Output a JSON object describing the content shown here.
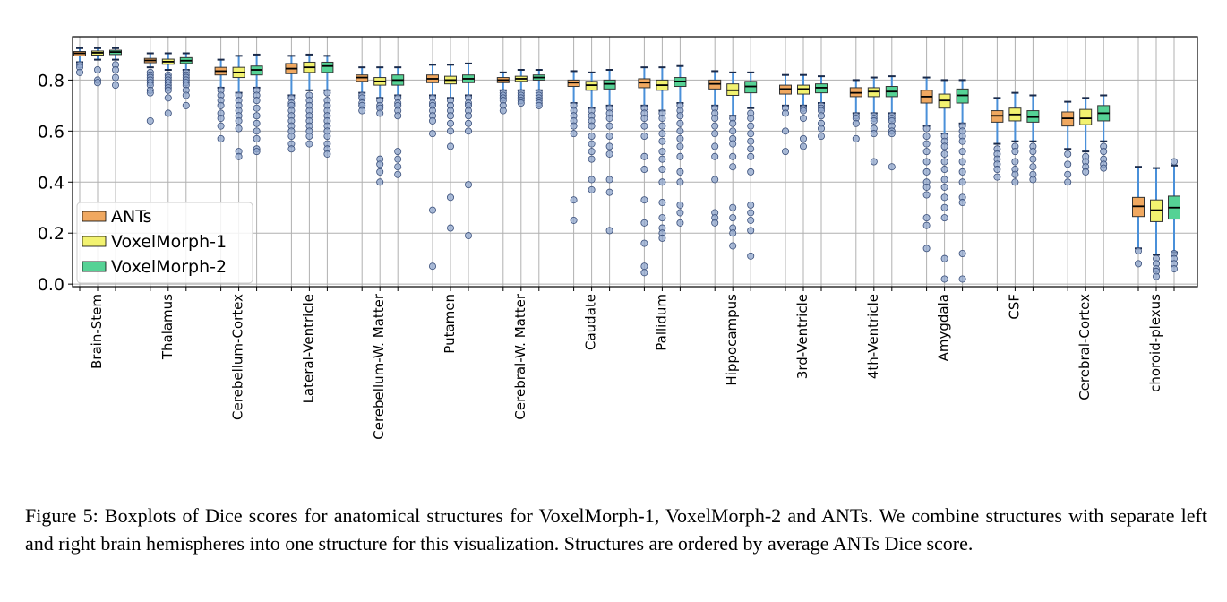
{
  "chart_data": {
    "type": "boxplot",
    "categories": [
      "Brain-Stem",
      "Thalamus",
      "Cerebellum-Cortex",
      "Lateral-Ventricle",
      "Cerebellum-W. Matter",
      "Putamen",
      "Cerebral-W. Matter",
      "Caudate",
      "Pallidum",
      "Hippocampus",
      "3rd-Ventricle",
      "4th-Ventricle",
      "Amygdala",
      "CSF",
      "Cerebral-Cortex",
      "choroid-plexus"
    ],
    "ylim": [
      -0.01,
      0.97
    ],
    "yticks": [
      "0.0",
      "0.2",
      "0.4",
      "0.6",
      "0.8"
    ],
    "grid": true,
    "legend_position": "lower-left",
    "series": [
      {
        "name": "ANTs",
        "color": "#f0a860",
        "boxes": [
          {
            "whislo": 0.87,
            "q1": 0.895,
            "med": 0.905,
            "q3": 0.912,
            "whishi": 0.925,
            "fliers": [
              0.86,
              0.85,
              0.83
            ]
          },
          {
            "whislo": 0.85,
            "q1": 0.868,
            "med": 0.877,
            "q3": 0.885,
            "whishi": 0.905,
            "fliers": [
              0.83,
              0.82,
              0.81,
              0.8,
              0.79,
              0.78,
              0.76,
              0.75,
              0.64
            ]
          },
          {
            "whislo": 0.77,
            "q1": 0.82,
            "med": 0.835,
            "q3": 0.85,
            "whishi": 0.88,
            "fliers": [
              0.76,
              0.74,
              0.72,
              0.7,
              0.67,
              0.65,
              0.62,
              0.57
            ]
          },
          {
            "whislo": 0.74,
            "q1": 0.825,
            "med": 0.845,
            "q3": 0.865,
            "whishi": 0.895,
            "fliers": [
              0.73,
              0.71,
              0.7,
              0.68,
              0.66,
              0.64,
              0.62,
              0.6,
              0.58,
              0.55,
              0.53
            ]
          },
          {
            "whislo": 0.75,
            "q1": 0.795,
            "med": 0.81,
            "q3": 0.82,
            "whishi": 0.85,
            "fliers": [
              0.74,
              0.73,
              0.71,
              0.7,
              0.68
            ]
          },
          {
            "whislo": 0.74,
            "q1": 0.79,
            "med": 0.805,
            "q3": 0.82,
            "whishi": 0.86,
            "fliers": [
              0.73,
              0.71,
              0.7,
              0.68,
              0.66,
              0.64,
              0.59,
              0.29,
              0.07
            ]
          },
          {
            "whislo": 0.76,
            "q1": 0.79,
            "med": 0.8,
            "q3": 0.81,
            "whishi": 0.83,
            "fliers": [
              0.75,
              0.74,
              0.73,
              0.72,
              0.7,
              0.68
            ]
          },
          {
            "whislo": 0.71,
            "q1": 0.775,
            "med": 0.79,
            "q3": 0.8,
            "whishi": 0.835,
            "fliers": [
              0.7,
              0.68,
              0.66,
              0.64,
              0.62,
              0.59,
              0.33,
              0.25
            ]
          },
          {
            "whislo": 0.7,
            "q1": 0.77,
            "med": 0.79,
            "q3": 0.805,
            "whishi": 0.85,
            "fliers": [
              0.69,
              0.67,
              0.65,
              0.62,
              0.58,
              0.5,
              0.45,
              0.33,
              0.24,
              0.16,
              0.07,
              0.045
            ]
          },
          {
            "whislo": 0.7,
            "q1": 0.765,
            "med": 0.785,
            "q3": 0.8,
            "whishi": 0.835,
            "fliers": [
              0.69,
              0.67,
              0.65,
              0.62,
              0.59,
              0.54,
              0.5,
              0.41,
              0.28,
              0.26,
              0.24
            ]
          },
          {
            "whislo": 0.7,
            "q1": 0.745,
            "med": 0.765,
            "q3": 0.78,
            "whishi": 0.82,
            "fliers": [
              0.69,
              0.67,
              0.6,
              0.52
            ]
          },
          {
            "whislo": 0.67,
            "q1": 0.735,
            "med": 0.75,
            "q3": 0.77,
            "whishi": 0.8,
            "fliers": [
              0.66,
              0.65,
              0.63,
              0.57
            ]
          },
          {
            "whislo": 0.62,
            "q1": 0.71,
            "med": 0.735,
            "q3": 0.76,
            "whishi": 0.81,
            "fliers": [
              0.61,
              0.58,
              0.55,
              0.52,
              0.48,
              0.44,
              0.4,
              0.38,
              0.35,
              0.26,
              0.23,
              0.14
            ]
          },
          {
            "whislo": 0.55,
            "q1": 0.635,
            "med": 0.66,
            "q3": 0.68,
            "whishi": 0.73,
            "fliers": [
              0.53,
              0.51,
              0.49,
              0.47,
              0.45,
              0.42
            ]
          },
          {
            "whislo": 0.53,
            "q1": 0.62,
            "med": 0.65,
            "q3": 0.675,
            "whishi": 0.715,
            "fliers": [
              0.51,
              0.47,
              0.43,
              0.4
            ]
          },
          {
            "whislo": 0.14,
            "q1": 0.265,
            "med": 0.305,
            "q3": 0.34,
            "whishi": 0.46,
            "fliers": [
              0.13,
              0.08
            ]
          }
        ]
      },
      {
        "name": "VoxelMorph-1",
        "color": "#f2f270",
        "boxes": [
          {
            "whislo": 0.88,
            "q1": 0.898,
            "med": 0.907,
            "q3": 0.914,
            "whishi": 0.925,
            "fliers": [
              0.84,
              0.8,
              0.79
            ]
          },
          {
            "whislo": 0.84,
            "q1": 0.862,
            "med": 0.872,
            "q3": 0.882,
            "whishi": 0.905,
            "fliers": [
              0.82,
              0.81,
              0.8,
              0.79,
              0.78,
              0.77,
              0.76,
              0.73,
              0.67
            ]
          },
          {
            "whislo": 0.75,
            "q1": 0.81,
            "med": 0.83,
            "q3": 0.85,
            "whishi": 0.895,
            "fliers": [
              0.74,
              0.72,
              0.7,
              0.68,
              0.66,
              0.64,
              0.61,
              0.52,
              0.5
            ]
          },
          {
            "whislo": 0.76,
            "q1": 0.83,
            "med": 0.85,
            "q3": 0.87,
            "whishi": 0.9,
            "fliers": [
              0.74,
              0.72,
              0.7,
              0.68,
              0.66,
              0.64,
              0.62,
              0.6,
              0.58,
              0.55
            ]
          },
          {
            "whislo": 0.73,
            "q1": 0.78,
            "med": 0.795,
            "q3": 0.81,
            "whishi": 0.85,
            "fliers": [
              0.72,
              0.7,
              0.69,
              0.67,
              0.49,
              0.47,
              0.44,
              0.4
            ]
          },
          {
            "whislo": 0.73,
            "q1": 0.785,
            "med": 0.8,
            "q3": 0.815,
            "whishi": 0.86,
            "fliers": [
              0.72,
              0.7,
              0.68,
              0.66,
              0.63,
              0.6,
              0.54,
              0.34,
              0.22
            ]
          },
          {
            "whislo": 0.76,
            "q1": 0.795,
            "med": 0.805,
            "q3": 0.815,
            "whishi": 0.84,
            "fliers": [
              0.75,
              0.74,
              0.73,
              0.72,
              0.71
            ]
          },
          {
            "whislo": 0.69,
            "q1": 0.76,
            "med": 0.78,
            "q3": 0.795,
            "whishi": 0.83,
            "fliers": [
              0.68,
              0.66,
              0.64,
              0.62,
              0.58,
              0.55,
              0.52,
              0.49,
              0.41,
              0.37
            ]
          },
          {
            "whislo": 0.68,
            "q1": 0.76,
            "med": 0.78,
            "q3": 0.8,
            "whishi": 0.85,
            "fliers": [
              0.67,
              0.65,
              0.62,
              0.59,
              0.56,
              0.52,
              0.49,
              0.45,
              0.4,
              0.32,
              0.26,
              0.22,
              0.2,
              0.18
            ]
          },
          {
            "whislo": 0.66,
            "q1": 0.74,
            "med": 0.76,
            "q3": 0.785,
            "whishi": 0.83,
            "fliers": [
              0.65,
              0.63,
              0.6,
              0.57,
              0.55,
              0.5,
              0.46,
              0.3,
              0.26,
              0.22,
              0.2,
              0.15
            ]
          },
          {
            "whislo": 0.7,
            "q1": 0.745,
            "med": 0.765,
            "q3": 0.78,
            "whishi": 0.82,
            "fliers": [
              0.69,
              0.68,
              0.65,
              0.57,
              0.54
            ]
          },
          {
            "whislo": 0.67,
            "q1": 0.735,
            "med": 0.755,
            "q3": 0.77,
            "whishi": 0.81,
            "fliers": [
              0.66,
              0.65,
              0.64,
              0.61,
              0.59,
              0.48
            ]
          },
          {
            "whislo": 0.59,
            "q1": 0.69,
            "med": 0.72,
            "q3": 0.745,
            "whishi": 0.8,
            "fliers": [
              0.58,
              0.56,
              0.54,
              0.51,
              0.48,
              0.45,
              0.41,
              0.38,
              0.34,
              0.3,
              0.26,
              0.1,
              0.02
            ]
          },
          {
            "whislo": 0.56,
            "q1": 0.64,
            "med": 0.665,
            "q3": 0.69,
            "whishi": 0.75,
            "fliers": [
              0.54,
              0.52,
              0.48,
              0.45,
              0.43,
              0.4
            ]
          },
          {
            "whislo": 0.52,
            "q1": 0.625,
            "med": 0.65,
            "q3": 0.685,
            "whishi": 0.73,
            "fliers": [
              0.5,
              0.48,
              0.46,
              0.44
            ]
          },
          {
            "whislo": 0.115,
            "q1": 0.245,
            "med": 0.29,
            "q3": 0.33,
            "whishi": 0.455,
            "fliers": [
              0.1,
              0.08,
              0.06,
              0.05,
              0.03
            ]
          }
        ]
      },
      {
        "name": "VoxelMorph-2",
        "color": "#55d295",
        "boxes": [
          {
            "whislo": 0.88,
            "q1": 0.9,
            "med": 0.91,
            "q3": 0.917,
            "whishi": 0.925,
            "fliers": [
              0.86,
              0.84,
              0.81,
              0.78
            ]
          },
          {
            "whislo": 0.84,
            "q1": 0.865,
            "med": 0.876,
            "q3": 0.888,
            "whishi": 0.905,
            "fliers": [
              0.83,
              0.82,
              0.81,
              0.8,
              0.79,
              0.78,
              0.76,
              0.74,
              0.7
            ]
          },
          {
            "whislo": 0.77,
            "q1": 0.82,
            "med": 0.84,
            "q3": 0.855,
            "whishi": 0.9,
            "fliers": [
              0.76,
              0.74,
              0.72,
              0.69,
              0.66,
              0.63,
              0.6,
              0.57,
              0.53,
              0.52
            ]
          },
          {
            "whislo": 0.76,
            "q1": 0.83,
            "med": 0.855,
            "q3": 0.87,
            "whishi": 0.895,
            "fliers": [
              0.75,
              0.72,
              0.7,
              0.68,
              0.66,
              0.64,
              0.62,
              0.6,
              0.58,
              0.55,
              0.53,
              0.51
            ]
          },
          {
            "whislo": 0.74,
            "q1": 0.78,
            "med": 0.8,
            "q3": 0.82,
            "whishi": 0.85,
            "fliers": [
              0.73,
              0.71,
              0.7,
              0.68,
              0.66,
              0.52,
              0.49,
              0.46,
              0.43
            ]
          },
          {
            "whislo": 0.74,
            "q1": 0.79,
            "med": 0.805,
            "q3": 0.82,
            "whishi": 0.865,
            "fliers": [
              0.73,
              0.71,
              0.7,
              0.68,
              0.66,
              0.63,
              0.6,
              0.39,
              0.19
            ]
          },
          {
            "whislo": 0.76,
            "q1": 0.8,
            "med": 0.81,
            "q3": 0.82,
            "whishi": 0.84,
            "fliers": [
              0.75,
              0.74,
              0.73,
              0.72,
              0.71,
              0.7
            ]
          },
          {
            "whislo": 0.7,
            "q1": 0.765,
            "med": 0.785,
            "q3": 0.8,
            "whishi": 0.84,
            "fliers": [
              0.69,
              0.67,
              0.65,
              0.62,
              0.58,
              0.54,
              0.51,
              0.41,
              0.36,
              0.21
            ]
          },
          {
            "whislo": 0.71,
            "q1": 0.775,
            "med": 0.795,
            "q3": 0.81,
            "whishi": 0.855,
            "fliers": [
              0.7,
              0.68,
              0.66,
              0.63,
              0.6,
              0.57,
              0.54,
              0.5,
              0.44,
              0.4,
              0.31,
              0.28,
              0.24
            ]
          },
          {
            "whislo": 0.69,
            "q1": 0.75,
            "med": 0.775,
            "q3": 0.795,
            "whishi": 0.83,
            "fliers": [
              0.67,
              0.65,
              0.62,
              0.59,
              0.56,
              0.53,
              0.5,
              0.44,
              0.31,
              0.28,
              0.25,
              0.21,
              0.11
            ]
          },
          {
            "whislo": 0.71,
            "q1": 0.75,
            "med": 0.77,
            "q3": 0.785,
            "whishi": 0.815,
            "fliers": [
              0.7,
              0.69,
              0.68,
              0.66,
              0.63,
              0.61,
              0.58
            ]
          },
          {
            "whislo": 0.67,
            "q1": 0.735,
            "med": 0.755,
            "q3": 0.775,
            "whishi": 0.815,
            "fliers": [
              0.66,
              0.65,
              0.64,
              0.62,
              0.6,
              0.59,
              0.46
            ]
          },
          {
            "whislo": 0.63,
            "q1": 0.71,
            "med": 0.74,
            "q3": 0.765,
            "whishi": 0.8,
            "fliers": [
              0.62,
              0.6,
              0.58,
              0.56,
              0.52,
              0.48,
              0.44,
              0.4,
              0.34,
              0.32,
              0.12,
              0.02
            ]
          },
          {
            "whislo": 0.56,
            "q1": 0.635,
            "med": 0.655,
            "q3": 0.68,
            "whishi": 0.74,
            "fliers": [
              0.54,
              0.52,
              0.49,
              0.46,
              0.43,
              0.41
            ]
          },
          {
            "whislo": 0.56,
            "q1": 0.64,
            "med": 0.67,
            "q3": 0.7,
            "whishi": 0.74,
            "fliers": [
              0.54,
              0.52,
              0.49,
              0.47,
              0.455
            ]
          },
          {
            "whislo": 0.125,
            "q1": 0.255,
            "med": 0.3,
            "q3": 0.345,
            "whishi": 0.465,
            "fliers": [
              0.48,
              0.12,
              0.1,
              0.08,
              0.06
            ]
          }
        ]
      }
    ]
  },
  "caption": "Figure 5: Boxplots of Dice scores for anatomical structures for VoxelMorph-1, VoxelMorph-2 and ANTs.  We combine structures with separate left and right brain hemispheres into one structure for this visualization. Structures are ordered by average ANTs Dice score."
}
